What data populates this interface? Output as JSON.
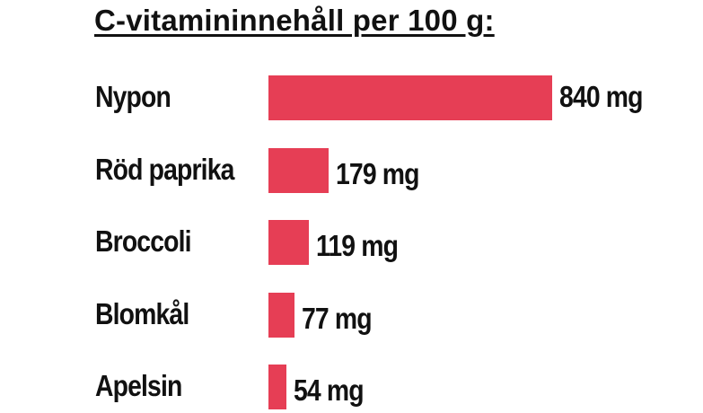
{
  "chart_data": {
    "type": "bar",
    "orientation": "horizontal",
    "title": "C-vitamininnehåll per 100 g:",
    "categories": [
      "Nypon",
      "Röd paprika",
      "Broccoli",
      "Blomkål",
      "Apelsin"
    ],
    "values": [
      840,
      179,
      119,
      77,
      54
    ],
    "value_labels": [
      "840 mg",
      "179 mg",
      "119 mg",
      "77 mg",
      "54 mg"
    ],
    "unit": "mg",
    "xlim": [
      0,
      840
    ],
    "grid": false,
    "bar_color": "#e63e55"
  }
}
